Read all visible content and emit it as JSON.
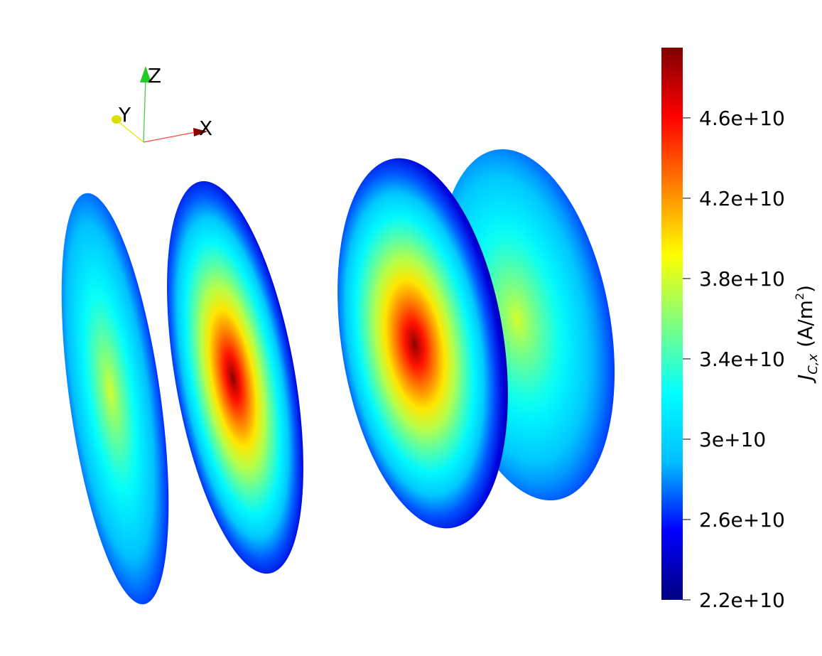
{
  "orientation_axes": {
    "labels": {
      "z": "Z",
      "y": "Y",
      "x": "X"
    },
    "colors": {
      "z": "#22cc22",
      "y": "#dddd00",
      "x": "#8b0000",
      "x_line": "#ff4444",
      "y_line": "#e6e600",
      "z_line": "#33cc33"
    }
  },
  "colorbar": {
    "title_main": "J",
    "title_sub": "C,x",
    "title_unit_pre": " (A/m",
    "title_unit_sup": "2",
    "title_unit_post": ")",
    "range": [
      22000000000.0,
      49500000000.0
    ],
    "ticks": [
      {
        "value": 22000000000.0,
        "label": "2.2e+10"
      },
      {
        "value": 26000000000.0,
        "label": "2.6e+10"
      },
      {
        "value": 30000000000.0,
        "label": "3e+10"
      },
      {
        "value": 34000000000.0,
        "label": "3.4e+10"
      },
      {
        "value": 38000000000.0,
        "label": "3.8e+10"
      },
      {
        "value": 42000000000.0,
        "label": "4.2e+10"
      },
      {
        "value": 46000000000.0,
        "label": "4.6e+10"
      }
    ],
    "colormap": [
      "#00007f",
      "#0000ff",
      "#00bfff",
      "#00ffff",
      "#7fff7f",
      "#ffff00",
      "#ff7f00",
      "#ff0000",
      "#7f0000"
    ]
  },
  "slices": [
    {
      "name": "slice-1",
      "edge_value": 25500000000.0,
      "peak_value": 38000000000.0
    },
    {
      "name": "slice-2",
      "edge_value": 22000000000.0,
      "peak_value": 49000000000.0
    },
    {
      "name": "slice-3",
      "edge_value": 22000000000.0,
      "peak_value": 49000000000.0
    },
    {
      "name": "slice-4",
      "edge_value": 26000000000.0,
      "peak_value": 38000000000.0
    }
  ]
}
